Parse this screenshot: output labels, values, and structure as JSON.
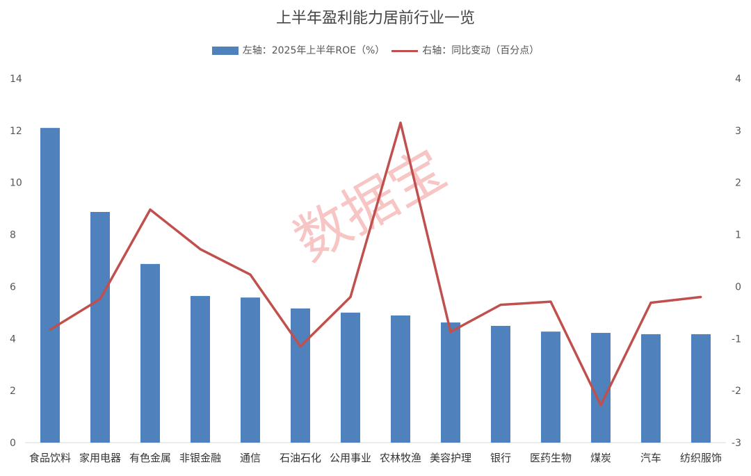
{
  "chart_data": {
    "type": "bar+line",
    "title": "上半年盈利能力居前行业一览",
    "categories": [
      "食品饮料",
      "家用电器",
      "有色金属",
      "非银金融",
      "通信",
      "石油石化",
      "公用事业",
      "农林牧渔",
      "美容护理",
      "银行",
      "医药生物",
      "煤炭",
      "汽车",
      "纺织服饰"
    ],
    "series": [
      {
        "name": "左轴：2025年上半年ROE（%）",
        "type": "bar",
        "axis": "left",
        "color": "#4f81bd",
        "values": [
          12.1,
          8.87,
          6.87,
          5.64,
          5.58,
          5.16,
          5.0,
          4.89,
          4.62,
          4.49,
          4.27,
          4.22,
          4.17,
          4.17
        ]
      },
      {
        "name": "右轴：同比变动（百分点）",
        "type": "line",
        "axis": "right",
        "color": "#c0504d",
        "values": [
          -0.83,
          -0.24,
          1.48,
          0.72,
          0.23,
          -1.15,
          -0.2,
          3.15,
          -0.87,
          -0.35,
          -0.29,
          -2.28,
          -0.31,
          -0.2
        ]
      }
    ],
    "ylim_left": [
      0,
      14
    ],
    "yticks_left": [
      0,
      2,
      4,
      6,
      8,
      10,
      12,
      14
    ],
    "ylim_right": [
      -3,
      4
    ],
    "yticks_right": [
      -3,
      -2,
      -1,
      0,
      1,
      2,
      3,
      4
    ],
    "grid": false,
    "legend": "top",
    "watermark": "数据宝"
  }
}
